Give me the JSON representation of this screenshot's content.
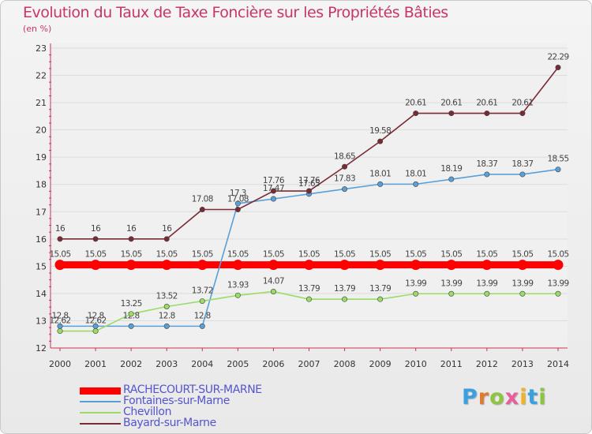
{
  "page": {
    "title": "Evolution du Taux de Taxe Foncière sur les Propriétés Bâties",
    "subtitle": "(en %)"
  },
  "brand": {
    "text": "Proxiti"
  },
  "chart_data": {
    "type": "line",
    "title": "Evolution du Taux de Taxe Foncière sur les Propriétés Bâties",
    "ylabel": "(en %)",
    "xlabel": "",
    "x": [
      "2000",
      "2001",
      "2002",
      "2003",
      "2004",
      "2005",
      "2006",
      "2007",
      "2008",
      "2009",
      "2010",
      "2011",
      "2012",
      "2013",
      "2014"
    ],
    "ylim": [
      12,
      23
    ],
    "yticks": [
      "12",
      "13",
      "14",
      "15",
      "16",
      "17",
      "18",
      "19",
      "20",
      "21",
      "22",
      "23"
    ],
    "grid": "horizontal",
    "legend_position": "bottom-left",
    "series": [
      {
        "name": "RACHECOURT-SUR-MARNE",
        "color": "#ff0000",
        "values": [
          15.05,
          15.05,
          15.05,
          15.05,
          15.05,
          15.05,
          15.05,
          15.05,
          15.05,
          15.05,
          15.05,
          15.05,
          15.05,
          15.05,
          15.05
        ],
        "labels": [
          "15.05",
          "15.05",
          "15.05",
          "15.05",
          "15.05",
          "15.05",
          "15.05",
          "15.05",
          "15.05",
          "15.05",
          "15.05",
          "15.05",
          "15.05",
          "15.05",
          "15.05"
        ],
        "thick": true
      },
      {
        "name": "Fontaines-sur-Marne",
        "color": "#5aa0d8",
        "values": [
          12.8,
          12.8,
          12.8,
          12.8,
          12.8,
          17.3,
          17.47,
          17.65,
          17.83,
          18.01,
          18.01,
          18.19,
          18.37,
          18.37,
          18.55
        ],
        "labels": [
          "12.8",
          "12.8",
          "12.8",
          "12.8",
          "12.8",
          "17.3",
          "17.47",
          "17.65",
          "17.83",
          "18.01",
          "18.01",
          "18.19",
          "18.37",
          "18.37",
          "18.55"
        ],
        "thick": false
      },
      {
        "name": "Chevillon",
        "color": "#99dd66",
        "values": [
          12.62,
          12.62,
          13.25,
          13.52,
          13.72,
          13.93,
          14.07,
          13.79,
          13.79,
          13.79,
          13.99,
          13.99,
          13.99,
          13.99,
          13.99
        ],
        "labels": [
          "12.62",
          "12.62",
          "13.25",
          "13.52",
          "13.72",
          "13.93",
          "14.07",
          "13.79",
          "13.79",
          "13.79",
          "13.99",
          "13.99",
          "13.99",
          "13.99",
          "13.99"
        ],
        "thick": false
      },
      {
        "name": "Bayard-sur-Marne",
        "color": "#7a2a35",
        "values": [
          16,
          16,
          16,
          16,
          17.08,
          17.08,
          17.76,
          17.76,
          18.65,
          19.58,
          20.61,
          20.61,
          20.61,
          20.61,
          22.29
        ],
        "labels": [
          "16",
          "16",
          "16",
          "16",
          "17.08",
          "17.08",
          "17.76",
          "17.76",
          "18.65",
          "19.58",
          "20.61",
          "20.61",
          "20.61",
          "20.61",
          "22.29"
        ],
        "thick": false
      }
    ]
  }
}
